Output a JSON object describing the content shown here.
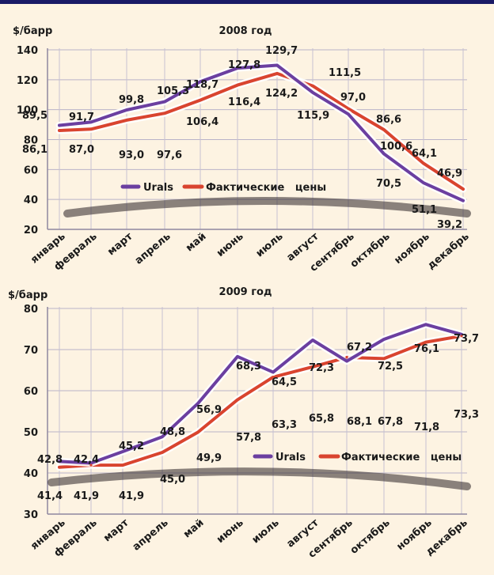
{
  "chart_data": [
    {
      "type": "line",
      "title": "2008 год",
      "ylabel": "$/барр",
      "xlabel": "",
      "ylim": [
        20,
        140
      ],
      "yticks": [
        20,
        40,
        60,
        80,
        100,
        120,
        140
      ],
      "yticklabels": [
        "20",
        "40",
        "60",
        "80",
        "100",
        "120",
        "140"
      ],
      "grid": true,
      "legend": "center-left",
      "categories": [
        "январь",
        "февраль",
        "март",
        "апрель",
        "май",
        "июнь",
        "июль",
        "август",
        "сентябрь",
        "октябрь",
        "ноябрь",
        "декабрь"
      ],
      "series": [
        {
          "name": "Urals",
          "color": "#6b3fa0",
          "values": [
            89.5,
            91.7,
            99.8,
            105.3,
            118.7,
            127.8,
            129.7,
            111.5,
            97.0,
            70.5,
            51.1,
            39.2
          ],
          "labels": [
            "89,5",
            "91,7",
            "99,8",
            "105,3",
            "118,7",
            "127,8",
            "129,7",
            "111,5",
            "97,0",
            "70,5",
            "51,1",
            "39,2"
          ]
        },
        {
          "name": "Фактические   цены",
          "color": "#d9442f",
          "values": [
            86.1,
            87.0,
            93.0,
            97.6,
            106.4,
            116.4,
            124.2,
            115.9,
            100.6,
            86.6,
            64.1,
            46.9
          ],
          "labels": [
            "86,1",
            "87,0",
            "93,0",
            "97,6",
            "106,4",
            "116,4",
            "124,2",
            "115,9",
            "100,6",
            "86,6",
            "64,1",
            "46,9"
          ]
        }
      ]
    },
    {
      "type": "line",
      "title": "2009 год",
      "ylabel": "$/барр",
      "xlabel": "",
      "ylim": [
        30,
        80
      ],
      "yticks": [
        30,
        40,
        50,
        60,
        70,
        80
      ],
      "yticklabels": [
        "30",
        "40",
        "50",
        "60",
        "70",
        "80"
      ],
      "grid": true,
      "legend": "center-right",
      "categories": [
        "январь",
        "февраль",
        "март",
        "апрель",
        "май",
        "июнь",
        "июль",
        "август",
        "сентябрь",
        "октябрь",
        "ноябрь",
        "декабрь"
      ],
      "series": [
        {
          "name": "Urals",
          "color": "#6b3fa0",
          "values": [
            42.8,
            42.4,
            45.2,
            48.8,
            56.9,
            68.3,
            64.5,
            72.3,
            67.2,
            72.5,
            76.1,
            73.7
          ],
          "labels": [
            "42,8",
            "42,4",
            "45,2",
            "48,8",
            "56,9",
            "68,3",
            "64,5",
            "72,3",
            "67,2",
            "72,5",
            "76,1",
            "73,7"
          ]
        },
        {
          "name": "Фактические   цены",
          "color": "#d9442f",
          "values": [
            41.4,
            41.9,
            41.9,
            45.0,
            49.9,
            57.8,
            63.3,
            65.8,
            68.1,
            67.8,
            71.8,
            73.3
          ],
          "labels": [
            "41,4",
            "41,9",
            "41,9",
            "45,0",
            "49,9",
            "57,8",
            "63,3",
            "65,8",
            "68,1",
            "67,8",
            "71,8",
            "73,3"
          ]
        }
      ]
    }
  ]
}
